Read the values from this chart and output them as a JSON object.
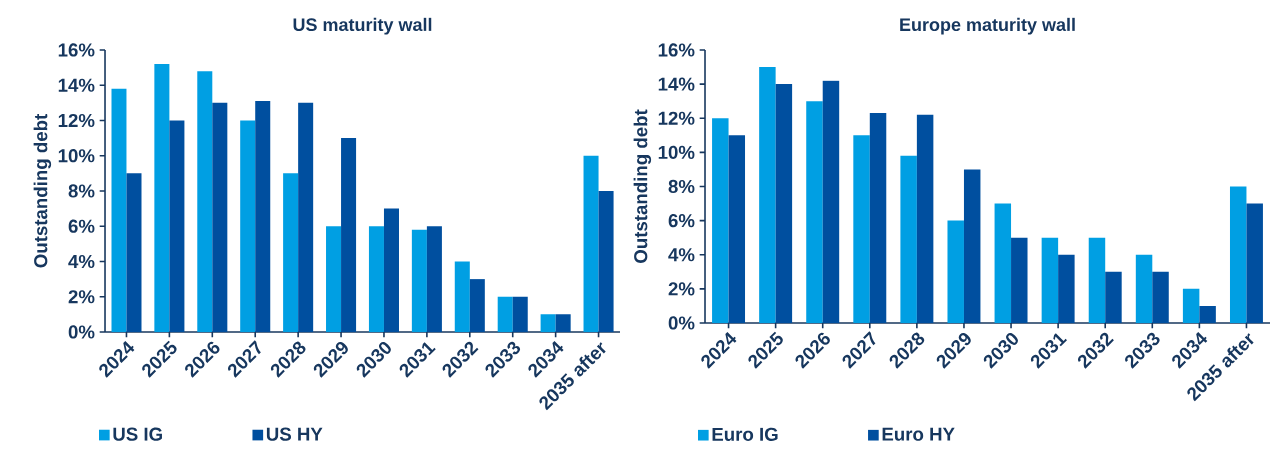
{
  "chart_data": [
    {
      "type": "bar",
      "title": "US maturity wall",
      "ylabel": "Outstanding debt",
      "categories": [
        "2024",
        "2025",
        "2026",
        "2027",
        "2028",
        "2029",
        "2030",
        "2031",
        "2032",
        "2033",
        "2034",
        "2035 after"
      ],
      "series": [
        {
          "name": "US IG",
          "color": "#009fe3",
          "values": [
            13.8,
            15.2,
            14.8,
            12,
            9,
            6,
            6,
            5.8,
            4,
            2,
            1,
            10
          ]
        },
        {
          "name": "US HY",
          "color": "#004f9f",
          "values": [
            9,
            12,
            13,
            13.1,
            13,
            11,
            7,
            6,
            3,
            2,
            1,
            8
          ]
        }
      ],
      "ylim": [
        0,
        16
      ],
      "yticks": [
        {
          "value": 0,
          "label": "0%"
        },
        {
          "value": 2,
          "label": "2%"
        },
        {
          "value": 4,
          "label": "4%"
        },
        {
          "value": 6,
          "label": "6%"
        },
        {
          "value": 8,
          "label": "8%"
        },
        {
          "value": 10,
          "label": "10%"
        },
        {
          "value": 12,
          "label": "12%"
        },
        {
          "value": 14,
          "label": "14%"
        },
        {
          "value": 16,
          "label": "16%"
        }
      ],
      "legend": "bottom"
    },
    {
      "type": "bar",
      "title": "Europe maturity wall",
      "ylabel": "Outstanding debt",
      "categories": [
        "2024",
        "2025",
        "2026",
        "2027",
        "2028",
        "2029",
        "2030",
        "2031",
        "2032",
        "2033",
        "2034",
        "2035 after"
      ],
      "series": [
        {
          "name": "Euro IG",
          "color": "#009fe3",
          "values": [
            12,
            15,
            13,
            11,
            9.8,
            6,
            7,
            5,
            5,
            4,
            2,
            8
          ]
        },
        {
          "name": "Euro HY",
          "color": "#004f9f",
          "values": [
            11,
            14,
            14.2,
            12.3,
            12.2,
            9,
            5,
            4,
            3,
            3,
            1,
            7
          ]
        }
      ],
      "ylim": [
        0,
        16
      ],
      "yticks": [
        {
          "value": 0,
          "label": "0%"
        },
        {
          "value": 2,
          "label": "2%"
        },
        {
          "value": 4,
          "label": "4%"
        },
        {
          "value": 6,
          "label": "6%"
        },
        {
          "value": 8,
          "label": "8%"
        },
        {
          "value": 10,
          "label": "10%"
        },
        {
          "value": 12,
          "label": "12%"
        },
        {
          "value": 14,
          "label": "14%"
        },
        {
          "value": 16,
          "label": "16%"
        }
      ],
      "legend": "bottom"
    }
  ]
}
